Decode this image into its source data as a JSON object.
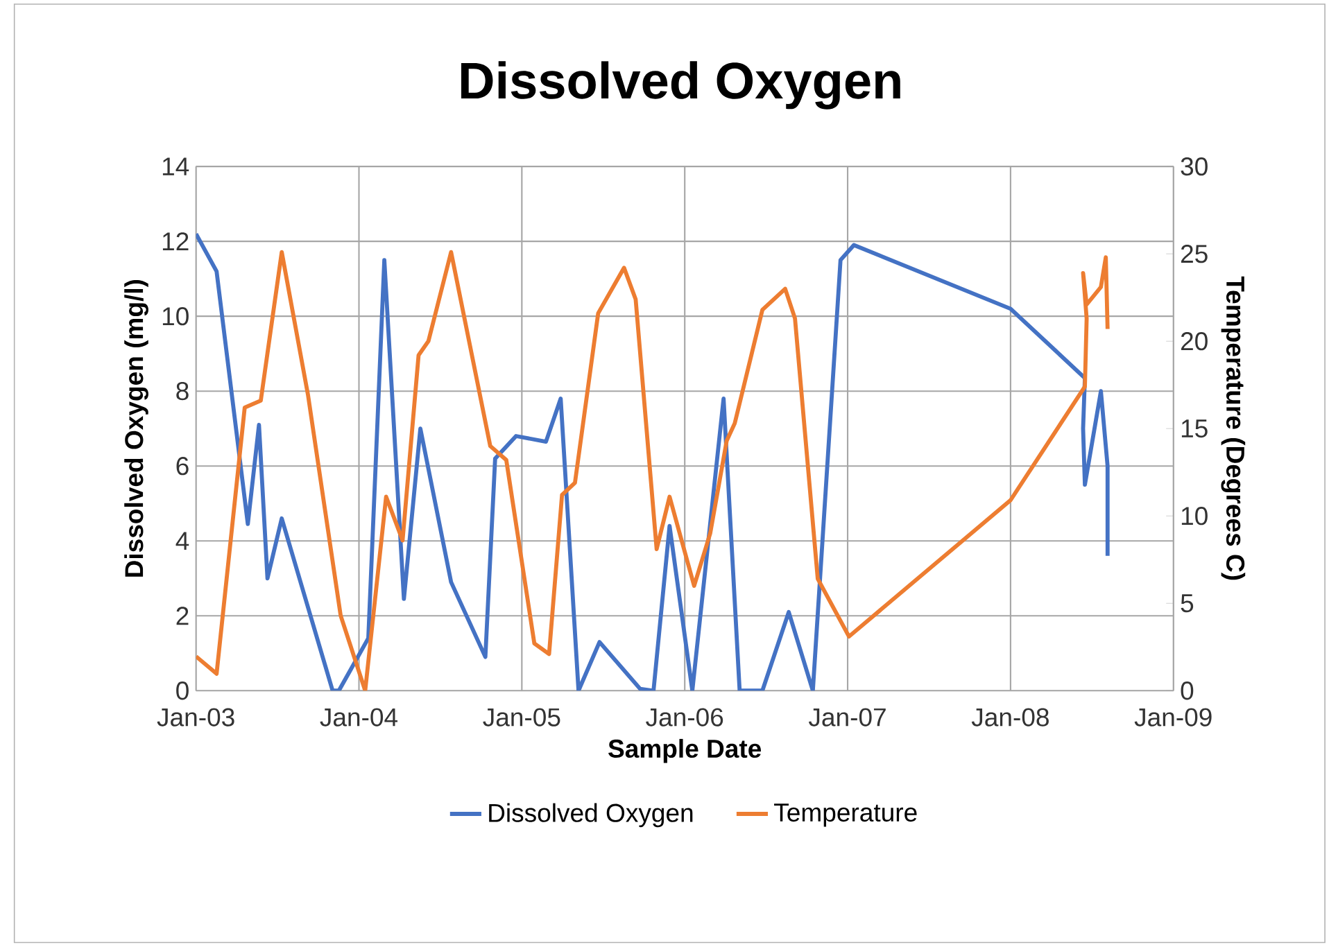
{
  "chart_data": {
    "type": "line",
    "title": "Dissolved Oxygen",
    "xlabel": "Sample Date",
    "ylabel": "Dissolved Oxygen (mg/l)",
    "y2label": "Temperature (Degrees C)",
    "xlim": [
      "2003-01-01",
      "2009-01-01"
    ],
    "xticks": [
      {
        "value": "2003-01-01",
        "label": "Jan-03"
      },
      {
        "value": "2004-01-01",
        "label": "Jan-04"
      },
      {
        "value": "2005-01-01",
        "label": "Jan-05"
      },
      {
        "value": "2006-01-01",
        "label": "Jan-06"
      },
      {
        "value": "2007-01-01",
        "label": "Jan-07"
      },
      {
        "value": "2008-01-01",
        "label": "Jan-08"
      },
      {
        "value": "2009-01-01",
        "label": "Jan-09"
      }
    ],
    "ylim": [
      0,
      14
    ],
    "yticks": [
      0,
      2,
      4,
      6,
      8,
      10,
      12,
      14
    ],
    "y2lim": [
      0,
      30
    ],
    "y2ticks": [
      0,
      5,
      10,
      15,
      20,
      25,
      30
    ],
    "grid": true,
    "legend": "bottom",
    "series": [
      {
        "name": "Dissolved Oxygen",
        "color": "#4472c4",
        "x": [
          "2003-01-01",
          "2003-02-16",
          "2003-04-27",
          "2003-05-22",
          "2003-06-10",
          "2003-07-12",
          "2003-11-03",
          "2003-11-17",
          "2004-01-22",
          "2004-02-27",
          "2004-04-11",
          "2004-05-18",
          "2004-07-26",
          "2004-10-11",
          "2004-11-02",
          "2004-12-19",
          "2005-02-24",
          "2005-03-29",
          "2005-05-08",
          "2005-06-24",
          "2005-09-23",
          "2005-10-23",
          "2005-11-28",
          "2006-01-18",
          "2006-03-29",
          "2006-05-04",
          "2006-06-24",
          "2006-08-22",
          "2006-10-15",
          "2006-12-16",
          "2007-01-15",
          "2008-01-01",
          "2008-06-16",
          "2008-06-12",
          "2008-06-16",
          "2008-07-22",
          "2008-08-06",
          "2008-08-06"
        ],
        "values": [
          12.2,
          11.2,
          4.45,
          7.1,
          3.0,
          4.6,
          0,
          0,
          1.4,
          11.5,
          2.45,
          7.0,
          2.9,
          0.9,
          6.2,
          6.8,
          6.65,
          7.8,
          0,
          1.3,
          0.05,
          0,
          4.4,
          0,
          7.8,
          0,
          0,
          2.1,
          0,
          11.5,
          11.9,
          10.2,
          8.35,
          7.0,
          5.5,
          8.0,
          6.0,
          3.6
        ]
      },
      {
        "name": "Temperature",
        "color": "#ed7d31",
        "axis": "y2",
        "x": [
          "2003-01-01",
          "2003-02-16",
          "2003-04-20",
          "2003-05-26",
          "2003-07-12",
          "2003-09-09",
          "2003-11-21",
          "2004-01-15",
          "2004-03-02",
          "2004-04-08",
          "2004-05-14",
          "2004-06-05",
          "2004-07-26",
          "2004-10-22",
          "2004-11-27",
          "2005-01-29",
          "2005-03-03",
          "2005-04-01",
          "2005-04-30",
          "2005-06-21",
          "2005-08-18",
          "2005-09-13",
          "2005-10-30",
          "2005-11-28",
          "2006-01-22",
          "2006-02-27",
          "2006-04-05",
          "2006-04-23",
          "2006-06-24",
          "2006-08-14",
          "2006-09-05",
          "2006-10-26",
          "2007-01-04",
          "2008-01-01",
          "2008-06-16",
          "2008-06-20",
          "2008-06-12",
          "2008-06-20",
          "2008-07-22",
          "2008-08-02",
          "2008-08-06"
        ],
        "values": [
          1.96,
          0.97,
          16.2,
          16.6,
          25.1,
          16.9,
          4.3,
          0,
          11.1,
          8.6,
          19.2,
          20.0,
          25.1,
          14.0,
          13.2,
          2.7,
          2.1,
          11.2,
          11.9,
          21.6,
          24.2,
          22.4,
          8.1,
          11.1,
          6.0,
          9.0,
          14.3,
          15.3,
          21.8,
          23.0,
          21.3,
          6.4,
          3.1,
          10.9,
          17.4,
          21.3,
          23.9,
          22.1,
          23.1,
          24.8,
          20.7
        ]
      }
    ]
  }
}
